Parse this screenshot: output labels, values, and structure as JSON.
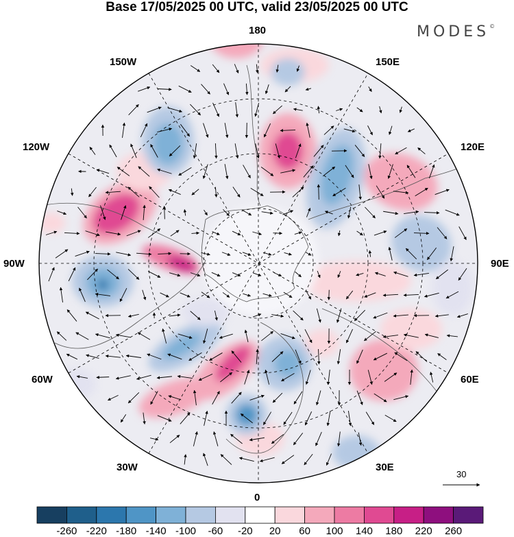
{
  "title": "Base 17/05/2025 00 UTC, valid 23/05/2025 00 UTC",
  "brand": "MODES",
  "brand_mark": "©",
  "longitude_labels": {
    "lon_180": "180",
    "lon_150e": "150E",
    "lon_120e": "120E",
    "lon_90e": "90E",
    "lon_60e": "60E",
    "lon_30e": "30E",
    "lon_0": "0",
    "lon_30w": "30W",
    "lon_60w": "60W",
    "lon_90w": "90W",
    "lon_120w": "120W",
    "lon_150w": "150W"
  },
  "colorbar": {
    "ticks": [
      "-260",
      "-220",
      "-180",
      "-140",
      "-100",
      "-60",
      "-20",
      "20",
      "60",
      "100",
      "140",
      "180",
      "220",
      "260"
    ],
    "colors": [
      "#173f60",
      "#1f5f8b",
      "#2c77ad",
      "#4f95c6",
      "#7fb1d7",
      "#b5c9e3",
      "#e2e2f0",
      "#ffffff",
      "#fad8dd",
      "#f4a9bb",
      "#ed7ba3",
      "#e04a92",
      "#c71f86",
      "#8e0f7e",
      "#5a1a78"
    ]
  },
  "vector_reference": {
    "value": "30"
  },
  "icons": [
    "north-pole-map-icon",
    "wind-vector-arrow-icon"
  ]
}
